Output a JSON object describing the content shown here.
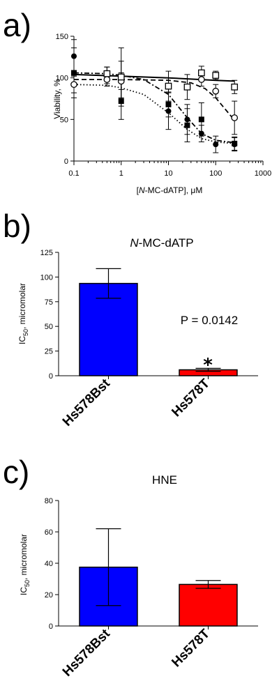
{
  "chart_data": [
    {
      "panel_label": "a)",
      "type": "scatter",
      "xscale": "log",
      "xlim": [
        0.1,
        1000
      ],
      "ylim": [
        0,
        150
      ],
      "xticks": [
        "0.1",
        "1",
        "10",
        "100",
        "1000"
      ],
      "yticks": [
        "0",
        "50",
        "100",
        "150"
      ],
      "ylabel": "Viability, %",
      "xlabel_parts": [
        "[",
        "N",
        "-MC-dATP], μM"
      ],
      "series": [
        {
          "marker": "filled-circle",
          "curve": "dotted",
          "x": [
            0.1,
            0.5,
            1,
            10,
            25,
            50,
            100,
            250
          ],
          "y": [
            126,
            103,
            98,
            60,
            50,
            33,
            20,
            20
          ],
          "err": [
            20,
            10,
            22,
            22,
            18,
            10,
            10,
            8
          ],
          "fit": [
            [
              0.1,
              92
            ],
            [
              0.5,
              91
            ],
            [
              1,
              88
            ],
            [
              3,
              80
            ],
            [
              10,
              58
            ],
            [
              25,
              38
            ],
            [
              50,
              27
            ],
            [
              100,
              23
            ],
            [
              250,
              21
            ]
          ]
        },
        {
          "marker": "filled-square",
          "curve": "dash-dot",
          "x": [
            0.1,
            1,
            10,
            25,
            50,
            250
          ],
          "y": [
            106,
            72,
            68,
            43,
            50,
            21
          ],
          "err": [
            30,
            22,
            15,
            20,
            20,
            8
          ],
          "fit": [
            [
              0.1,
              106
            ],
            [
              0.5,
              105
            ],
            [
              1,
              103
            ],
            [
              3,
              98
            ],
            [
              10,
              80
            ],
            [
              25,
              52
            ],
            [
              50,
              33
            ],
            [
              100,
              25
            ],
            [
              250,
              22
            ]
          ]
        },
        {
          "marker": "open-circle",
          "curve": "dashed",
          "x": [
            0.1,
            0.5,
            1,
            50,
            100,
            250
          ],
          "y": [
            92,
            98,
            96,
            98,
            84,
            52
          ],
          "err": [
            10,
            8,
            10,
            8,
            8,
            20
          ],
          "fit": [
            [
              0.1,
              98
            ],
            [
              1,
              98
            ],
            [
              10,
              97
            ],
            [
              30,
              94
            ],
            [
              60,
              87
            ],
            [
              100,
              76
            ],
            [
              150,
              64
            ],
            [
              250,
              49
            ]
          ]
        },
        {
          "marker": "open-square",
          "curve": "solid",
          "x": [
            0.5,
            1,
            10,
            25,
            50,
            100,
            250
          ],
          "y": [
            105,
            101,
            90,
            89,
            106,
            103,
            89
          ],
          "err": [
            8,
            35,
            18,
            15,
            8,
            5,
            8
          ],
          "fit": [
            [
              0.1,
              104
            ],
            [
              1,
              102
            ],
            [
              10,
              100
            ],
            [
              100,
              97
            ],
            [
              250,
              96
            ]
          ]
        }
      ]
    },
    {
      "panel_label": "b)",
      "type": "bar",
      "title_parts": [
        "N",
        "-MC-dATP"
      ],
      "categories": [
        "Hs578Bst",
        "Hs578T"
      ],
      "values": [
        93.5,
        6
      ],
      "errors": [
        15,
        1.5
      ],
      "colors": [
        "#0000ff",
        "#ff0000"
      ],
      "ylim": [
        0,
        125
      ],
      "yticks": [
        "0",
        "25",
        "50",
        "75",
        "100",
        "125"
      ],
      "ylabel_parts": [
        "IC",
        "50",
        ", micromolar"
      ],
      "annotation": "P = 0.0142",
      "significance_marker": "*"
    },
    {
      "panel_label": "c)",
      "type": "bar",
      "title": "HNE",
      "categories": [
        "Hs578Bst",
        "Hs578T"
      ],
      "values": [
        37.5,
        26.5
      ],
      "errors": [
        24.5,
        2.5
      ],
      "colors": [
        "#0000ff",
        "#ff0000"
      ],
      "ylim": [
        0,
        80
      ],
      "yticks": [
        "0",
        "20",
        "40",
        "60",
        "80"
      ],
      "ylabel_parts": [
        "IC",
        "50",
        ", micromolar"
      ]
    }
  ]
}
